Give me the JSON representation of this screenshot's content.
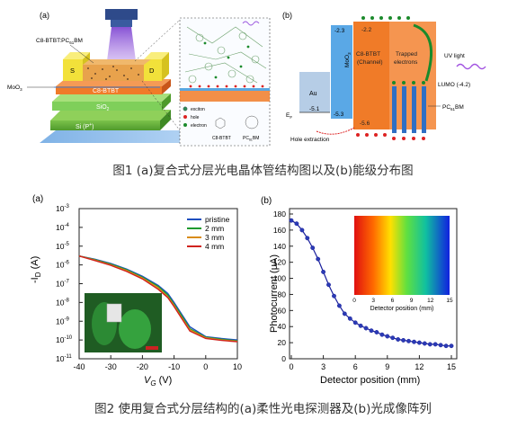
{
  "figure1": {
    "panel_a": {
      "label": "(a)",
      "texts": {
        "material": "C8-BTBT:PC",
        "material_sub": "61",
        "material_tail": "BM",
        "source": "S",
        "drain": "D",
        "moo3": "MoO",
        "moo3_sub": "3",
        "c8btbt": "C8-BTBT",
        "sio2": "SiO",
        "sio2_sub": "2",
        "si": "Si (P",
        "si_sup": "+",
        "si_tail": ")",
        "legend_exciton": "exciton",
        "legend_hole": "hole",
        "legend_electron": "electron",
        "molecule_c8": "C8-BTBT",
        "molecule_pc": "PC",
        "molecule_pc_sub": "61",
        "molecule_pc_tail": "BM"
      }
    },
    "panel_b": {
      "label": "(b)",
      "texts": {
        "au": "Au",
        "moo3": "MoO",
        "moo3_sub": "3",
        "c8_line1": "C8-BTBT",
        "c8_line2": "(Channel)",
        "trapped1": "Trapped",
        "trapped2": "electrons",
        "uv": "UV light",
        "lumo": "LUMO (-4.2)",
        "pcbm": "PC",
        "pcbm_sub": "61",
        "pcbm_tail": "BM",
        "ef": "E",
        "ef_sub": "F",
        "hole_extraction": "Hole extraction",
        "v_m23": "-2.3",
        "v_m22": "-2.2",
        "v_m51": "-5.1",
        "v_m53": "-5.3",
        "v_m56": "-5.6"
      }
    },
    "caption": "图1 (a)复合式分层光电晶体管结构图以及(b)能级分布图"
  },
  "figure2": {
    "panel_a": {
      "label": "(a)",
      "ylabel_main": "-I",
      "ylabel_sub": "D",
      "ylabel_tail": " (A)",
      "xlabel_main": "V",
      "xlabel_sub": "G",
      "xlabel_tail": " (V)",
      "yticks": [
        {
          "base": "10",
          "exp": "-3"
        },
        {
          "base": "10",
          "exp": "-4"
        },
        {
          "base": "10",
          "exp": "-5"
        },
        {
          "base": "10",
          "exp": "-6"
        },
        {
          "base": "10",
          "exp": "-7"
        },
        {
          "base": "10",
          "exp": "-8"
        },
        {
          "base": "10",
          "exp": "-9"
        },
        {
          "base": "10",
          "exp": "-10"
        },
        {
          "base": "10",
          "exp": "-11"
        }
      ],
      "xticks": [
        "-40",
        "-30",
        "-20",
        "-10",
        "0",
        "10"
      ],
      "legend": [
        "pristine",
        "2 mm",
        "3 mm",
        "4 mm"
      ]
    },
    "panel_b": {
      "label": "(b)",
      "ylabel": "Photocurrent (μA)",
      "xlabel": "Detector position (mm)",
      "yticks": [
        "0",
        "20",
        "40",
        "60",
        "80",
        "100",
        "120",
        "140",
        "160",
        "180"
      ],
      "xticks": [
        "0",
        "3",
        "6",
        "9",
        "12",
        "15"
      ],
      "inset_xlabel": "Detector position (mm)",
      "inset_xticks": [
        "0",
        "3",
        "6",
        "9",
        "12",
        "15"
      ]
    },
    "caption": "图2 使用复合式分层结构的(a)柔性光电探测器及(b)光成像阵列"
  },
  "chart_data": [
    {
      "type": "line",
      "title": "",
      "xlabel": "VG (V)",
      "ylabel": "-ID (A)",
      "xlim": [
        -40,
        10
      ],
      "ylim": [
        1e-11,
        0.001
      ],
      "yscale": "log",
      "legend_position": "top-right",
      "x": [
        -40,
        -35,
        -30,
        -25,
        -20,
        -15,
        -12,
        -10,
        -8,
        -5,
        0,
        5,
        10
      ],
      "series": [
        {
          "name": "pristine",
          "color": "#1f4fbf",
          "values": [
            3e-06,
            2e-06,
            1.2e-06,
            6e-07,
            2.5e-07,
            8e-08,
            3e-08,
            1e-08,
            3e-09,
            5e-10,
            1.5e-10,
            1.2e-10,
            1e-10
          ]
        },
        {
          "name": "2 mm",
          "color": "#1e9a2e",
          "values": [
            3e-06,
            1.9e-06,
            1.1e-06,
            5.5e-07,
            2.2e-07,
            7e-08,
            2.5e-08,
            8e-09,
            2.5e-09,
            4e-10,
            1.4e-10,
            1.1e-10,
            9e-11
          ]
        },
        {
          "name": "3 mm",
          "color": "#d98c1a",
          "values": [
            3e-06,
            1.8e-06,
            1e-06,
            5e-07,
            2e-07,
            6e-08,
            2e-08,
            7e-09,
            2e-09,
            3.5e-10,
            1.3e-10,
            1e-10,
            8.5e-11
          ]
        },
        {
          "name": "4 mm",
          "color": "#d0231e",
          "values": [
            3e-06,
            1.7e-06,
            9.5e-07,
            4.5e-07,
            1.8e-07,
            5e-08,
            1.8e-08,
            6e-09,
            1.8e-09,
            3e-10,
            1.2e-10,
            9.5e-11,
            8e-11
          ]
        }
      ]
    },
    {
      "type": "line",
      "title": "",
      "xlabel": "Detector position (mm)",
      "ylabel": "Photocurrent (μA)",
      "xlim": [
        0,
        15
      ],
      "ylim": [
        0,
        180
      ],
      "series": [
        {
          "name": "",
          "color": "#1a1f9c",
          "x": [
            0,
            0.5,
            1,
            1.5,
            2,
            2.5,
            3,
            3.5,
            4,
            4.5,
            5,
            5.5,
            6,
            6.5,
            7,
            7.5,
            8,
            8.5,
            9,
            9.5,
            10,
            10.5,
            11,
            11.5,
            12,
            12.5,
            13,
            13.5,
            14,
            14.5,
            15
          ],
          "values": [
            172,
            168,
            160,
            150,
            138,
            124,
            108,
            92,
            78,
            66,
            56,
            50,
            45,
            41,
            38,
            35,
            33,
            30,
            28,
            26,
            24,
            23,
            22,
            21,
            20,
            19,
            18,
            18,
            17,
            16,
            16
          ]
        }
      ]
    }
  ]
}
